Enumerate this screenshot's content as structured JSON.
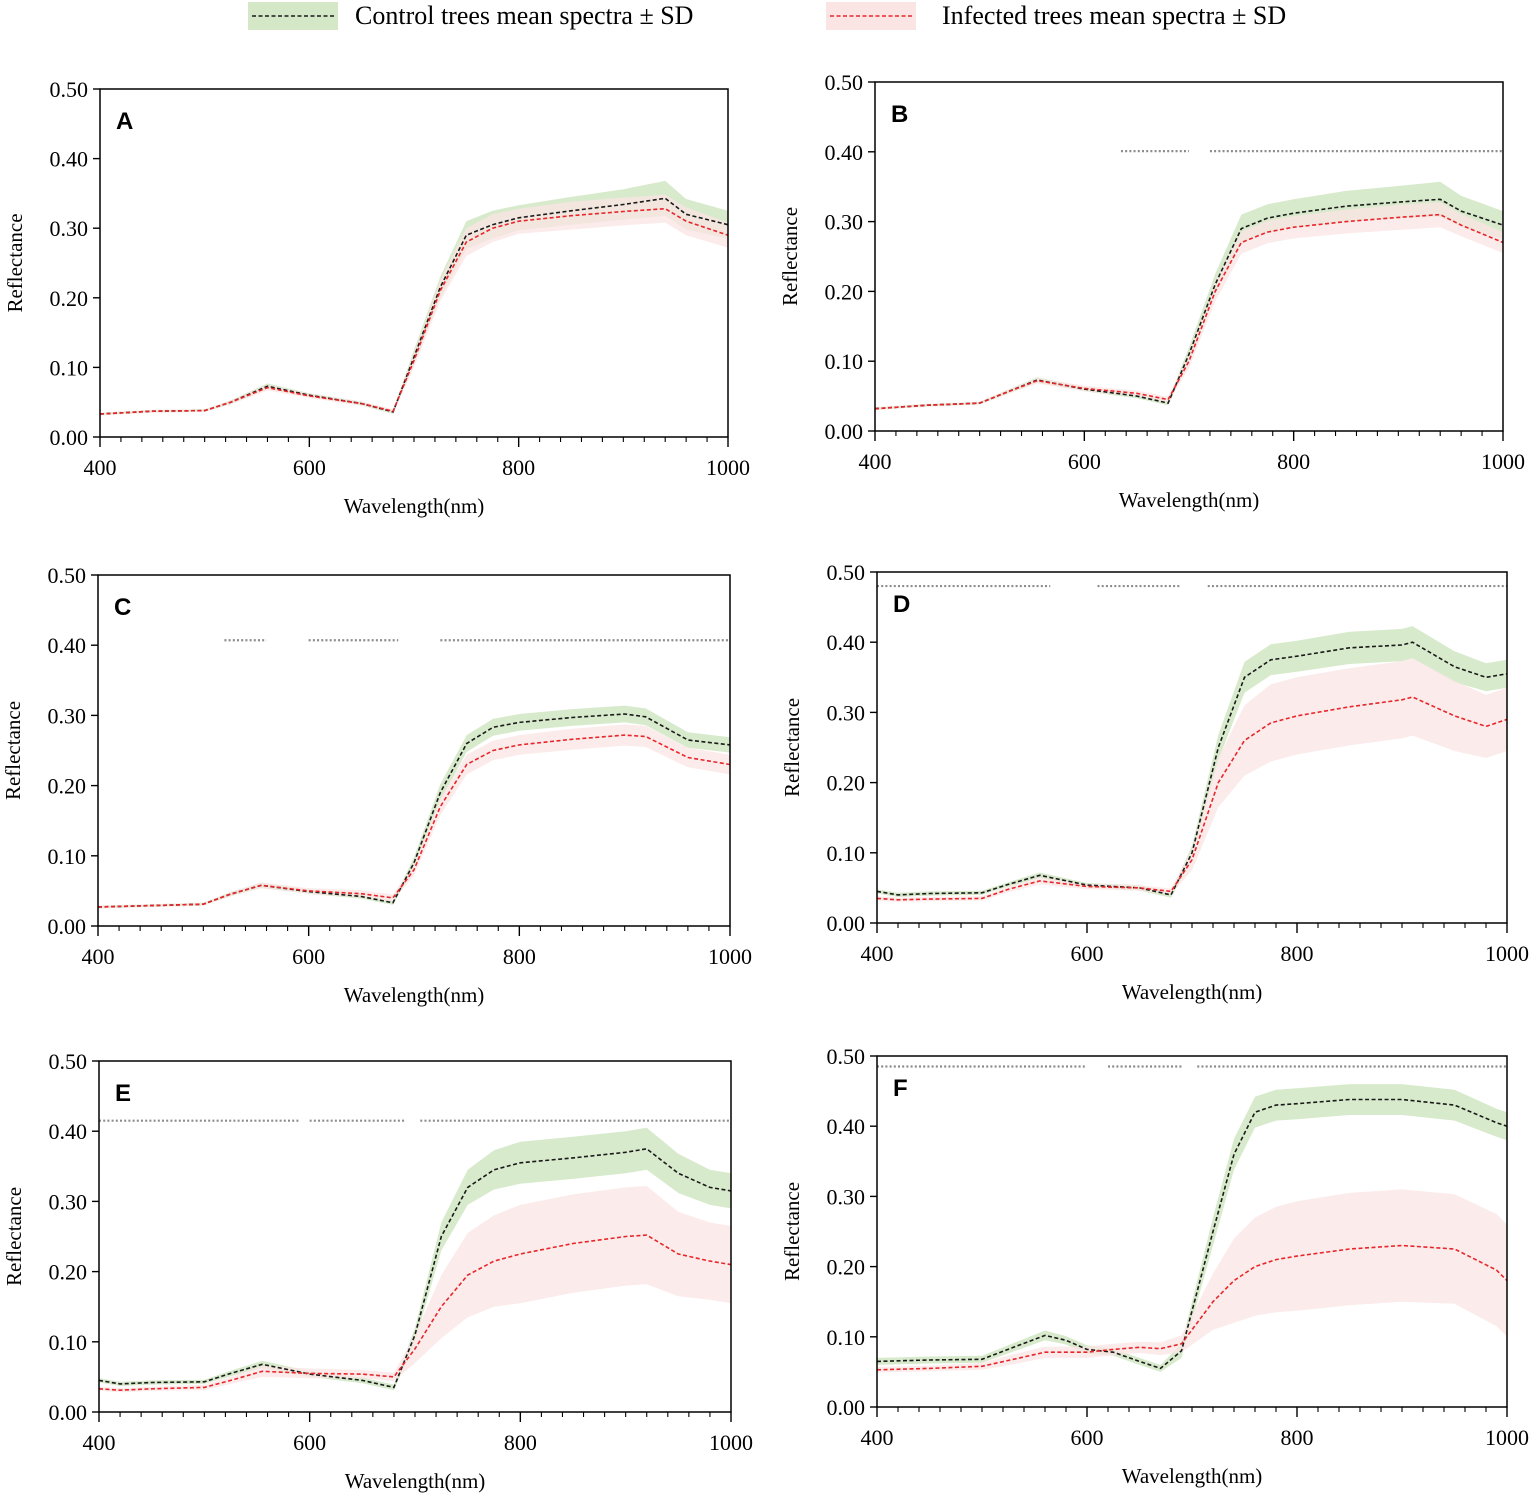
{
  "legend": {
    "control_label": "Control trees mean spectra ± SD",
    "infected_label": "Infected trees mean spectra ± SD"
  },
  "colors": {
    "control_line": "#1a1a1a",
    "control_band": "#d4e8c7",
    "infected_line": "#e8262a",
    "infected_band": "#fbe4e4",
    "axis": "#000000",
    "significance": "#8c8c8c"
  },
  "chart_data": [
    {
      "type": "line",
      "panel": "A",
      "xlabel": "Wavelength(nm)",
      "ylabel": "Reflectance",
      "xlim": [
        400,
        1000
      ],
      "ylim": [
        0,
        0.5
      ],
      "xticks": [
        "400",
        "600",
        "800",
        "1000"
      ],
      "yticks": [
        "0.00",
        "0.10",
        "0.20",
        "0.30",
        "0.40",
        "0.50"
      ],
      "x": [
        400,
        450,
        500,
        525,
        560,
        600,
        650,
        680,
        700,
        725,
        750,
        775,
        800,
        850,
        900,
        940,
        960,
        1000
      ],
      "series": [
        {
          "name": "Control trees mean spectra ± SD",
          "values": [
            0.033,
            0.037,
            0.038,
            0.05,
            0.073,
            0.06,
            0.048,
            0.036,
            0.115,
            0.215,
            0.29,
            0.305,
            0.315,
            0.325,
            0.334,
            0.343,
            0.32,
            0.305
          ],
          "sd": [
            0.002,
            0.002,
            0.002,
            0.003,
            0.004,
            0.003,
            0.003,
            0.003,
            0.01,
            0.015,
            0.02,
            0.02,
            0.018,
            0.02,
            0.022,
            0.025,
            0.022,
            0.02
          ]
        },
        {
          "name": "Infected trees mean spectra ± SD",
          "values": [
            0.033,
            0.037,
            0.038,
            0.05,
            0.071,
            0.059,
            0.048,
            0.037,
            0.11,
            0.21,
            0.28,
            0.3,
            0.31,
            0.318,
            0.324,
            0.328,
            0.31,
            0.29
          ],
          "sd": [
            0.002,
            0.002,
            0.002,
            0.003,
            0.004,
            0.003,
            0.003,
            0.003,
            0.01,
            0.015,
            0.02,
            0.02,
            0.018,
            0.02,
            0.02,
            0.02,
            0.02,
            0.018
          ]
        }
      ],
      "significance": {
        "y": null,
        "ranges": []
      }
    },
    {
      "type": "line",
      "panel": "B",
      "xlabel": "Wavelength(nm)",
      "ylabel": "Reflectance",
      "xlim": [
        400,
        1000
      ],
      "ylim": [
        0,
        0.5
      ],
      "xticks": [
        "400",
        "600",
        "800",
        "1000"
      ],
      "yticks": [
        "0.00",
        "0.10",
        "0.20",
        "0.30",
        "0.40",
        "0.50"
      ],
      "x": [
        400,
        450,
        500,
        525,
        555,
        600,
        650,
        680,
        700,
        725,
        750,
        775,
        800,
        850,
        900,
        940,
        960,
        1000
      ],
      "series": [
        {
          "name": "Control trees mean spectra ± SD",
          "values": [
            0.032,
            0.037,
            0.04,
            0.055,
            0.073,
            0.06,
            0.05,
            0.04,
            0.11,
            0.21,
            0.29,
            0.305,
            0.312,
            0.322,
            0.328,
            0.332,
            0.315,
            0.295
          ],
          "sd": [
            0.002,
            0.002,
            0.002,
            0.003,
            0.004,
            0.003,
            0.003,
            0.003,
            0.01,
            0.015,
            0.02,
            0.02,
            0.02,
            0.022,
            0.023,
            0.025,
            0.022,
            0.02
          ]
        },
        {
          "name": "Infected trees mean spectra ± SD",
          "values": [
            0.032,
            0.037,
            0.04,
            0.055,
            0.072,
            0.061,
            0.054,
            0.045,
            0.1,
            0.2,
            0.27,
            0.285,
            0.292,
            0.3,
            0.306,
            0.31,
            0.295,
            0.27
          ],
          "sd": [
            0.002,
            0.002,
            0.002,
            0.003,
            0.004,
            0.004,
            0.004,
            0.004,
            0.01,
            0.014,
            0.016,
            0.016,
            0.016,
            0.017,
            0.018,
            0.018,
            0.016,
            0.015
          ]
        }
      ],
      "significance": {
        "y": 0.401,
        "ranges": [
          [
            635,
            700
          ],
          [
            720,
            1000
          ]
        ]
      }
    },
    {
      "type": "line",
      "panel": "C",
      "xlabel": "Wavelength(nm)",
      "ylabel": "Reflectance",
      "xlim": [
        400,
        1000
      ],
      "ylim": [
        0,
        0.5
      ],
      "xticks": [
        "400",
        "600",
        "800",
        "1000"
      ],
      "yticks": [
        "0.00",
        "0.10",
        "0.20",
        "0.30",
        "0.40",
        "0.50"
      ],
      "x": [
        400,
        450,
        500,
        525,
        555,
        600,
        650,
        680,
        700,
        725,
        750,
        775,
        800,
        850,
        900,
        920,
        960,
        1000
      ],
      "series": [
        {
          "name": "Control trees mean spectra ± SD",
          "values": [
            0.027,
            0.029,
            0.031,
            0.045,
            0.058,
            0.049,
            0.042,
            0.033,
            0.09,
            0.19,
            0.26,
            0.283,
            0.29,
            0.297,
            0.302,
            0.298,
            0.265,
            0.258
          ],
          "sd": [
            0.002,
            0.002,
            0.002,
            0.003,
            0.004,
            0.003,
            0.003,
            0.003,
            0.008,
            0.012,
            0.012,
            0.012,
            0.012,
            0.012,
            0.012,
            0.012,
            0.011,
            0.011
          ]
        },
        {
          "name": "Infected trees mean spectra ± SD",
          "values": [
            0.027,
            0.029,
            0.031,
            0.045,
            0.058,
            0.05,
            0.046,
            0.04,
            0.08,
            0.17,
            0.23,
            0.25,
            0.258,
            0.266,
            0.272,
            0.27,
            0.24,
            0.23
          ],
          "sd": [
            0.002,
            0.002,
            0.002,
            0.003,
            0.004,
            0.004,
            0.005,
            0.005,
            0.008,
            0.012,
            0.014,
            0.014,
            0.014,
            0.015,
            0.015,
            0.015,
            0.014,
            0.014
          ]
        }
      ],
      "significance": {
        "y": 0.407,
        "ranges": [
          [
            520,
            560
          ],
          [
            600,
            685
          ],
          [
            725,
            1000
          ]
        ]
      }
    },
    {
      "type": "line",
      "panel": "D",
      "xlabel": "Wavelength(nm)",
      "ylabel": "Reflectance",
      "xlim": [
        400,
        1000
      ],
      "ylim": [
        0,
        0.5
      ],
      "xticks": [
        "400",
        "600",
        "800",
        "1000"
      ],
      "yticks": [
        "0.00",
        "0.10",
        "0.20",
        "0.30",
        "0.40",
        "0.50"
      ],
      "x": [
        400,
        420,
        450,
        500,
        525,
        555,
        600,
        650,
        680,
        700,
        725,
        750,
        775,
        800,
        850,
        900,
        910,
        950,
        980,
        1000
      ],
      "series": [
        {
          "name": "Control trees mean spectra ± SD",
          "values": [
            0.045,
            0.04,
            0.042,
            0.043,
            0.055,
            0.068,
            0.054,
            0.05,
            0.04,
            0.1,
            0.25,
            0.35,
            0.375,
            0.38,
            0.392,
            0.396,
            0.4,
            0.365,
            0.35,
            0.355
          ],
          "sd": [
            0.003,
            0.003,
            0.003,
            0.003,
            0.003,
            0.004,
            0.003,
            0.004,
            0.004,
            0.01,
            0.018,
            0.022,
            0.022,
            0.022,
            0.023,
            0.023,
            0.023,
            0.022,
            0.02,
            0.02
          ]
        },
        {
          "name": "Infected trees mean spectra ± SD",
          "values": [
            0.035,
            0.033,
            0.034,
            0.035,
            0.048,
            0.06,
            0.052,
            0.05,
            0.045,
            0.09,
            0.2,
            0.26,
            0.285,
            0.295,
            0.308,
            0.318,
            0.322,
            0.295,
            0.28,
            0.29
          ],
          "sd": [
            0.003,
            0.003,
            0.003,
            0.003,
            0.004,
            0.005,
            0.004,
            0.004,
            0.004,
            0.015,
            0.035,
            0.05,
            0.055,
            0.055,
            0.055,
            0.055,
            0.055,
            0.05,
            0.045,
            0.045
          ]
        }
      ],
      "significance": {
        "y": 0.48,
        "ranges": [
          [
            400,
            565
          ],
          [
            610,
            690
          ],
          [
            715,
            1000
          ]
        ]
      }
    },
    {
      "type": "line",
      "panel": "E",
      "xlabel": "Wavelength(nm)",
      "ylabel": "Reflectance",
      "xlim": [
        400,
        1000
      ],
      "ylim": [
        0,
        0.5
      ],
      "xticks": [
        "400",
        "600",
        "800",
        "1000"
      ],
      "yticks": [
        "0.00",
        "0.10",
        "0.20",
        "0.30",
        "0.40",
        "0.50"
      ],
      "x": [
        400,
        420,
        450,
        500,
        525,
        555,
        600,
        650,
        680,
        700,
        725,
        750,
        775,
        800,
        850,
        900,
        920,
        950,
        980,
        1000
      ],
      "series": [
        {
          "name": "Control trees mean spectra ± SD",
          "values": [
            0.045,
            0.04,
            0.042,
            0.043,
            0.055,
            0.068,
            0.054,
            0.045,
            0.035,
            0.11,
            0.25,
            0.32,
            0.345,
            0.355,
            0.362,
            0.37,
            0.375,
            0.34,
            0.32,
            0.315
          ],
          "sd": [
            0.003,
            0.003,
            0.003,
            0.003,
            0.004,
            0.005,
            0.004,
            0.004,
            0.004,
            0.01,
            0.02,
            0.025,
            0.028,
            0.03,
            0.03,
            0.03,
            0.03,
            0.028,
            0.025,
            0.025
          ]
        },
        {
          "name": "Infected trees mean spectra ± SD",
          "values": [
            0.033,
            0.031,
            0.033,
            0.035,
            0.045,
            0.058,
            0.055,
            0.054,
            0.05,
            0.09,
            0.15,
            0.195,
            0.215,
            0.225,
            0.24,
            0.25,
            0.252,
            0.225,
            0.215,
            0.21
          ],
          "sd": [
            0.003,
            0.003,
            0.003,
            0.004,
            0.005,
            0.008,
            0.007,
            0.006,
            0.006,
            0.02,
            0.045,
            0.06,
            0.065,
            0.07,
            0.07,
            0.07,
            0.07,
            0.06,
            0.055,
            0.055
          ]
        }
      ],
      "significance": {
        "y": 0.415,
        "ranges": [
          [
            400,
            590
          ],
          [
            600,
            690
          ],
          [
            705,
            1000
          ]
        ]
      }
    },
    {
      "type": "line",
      "panel": "F",
      "xlabel": "Wavelength(nm)",
      "ylabel": "Reflectance",
      "xlim": [
        400,
        1000
      ],
      "ylim": [
        0,
        0.5
      ],
      "xticks": [
        "400",
        "600",
        "800",
        "1000"
      ],
      "yticks": [
        "0.00",
        "0.10",
        "0.20",
        "0.30",
        "0.40",
        "0.50"
      ],
      "x": [
        400,
        450,
        500,
        530,
        560,
        580,
        600,
        625,
        650,
        670,
        690,
        720,
        740,
        760,
        780,
        800,
        850,
        900,
        950,
        990,
        1000
      ],
      "series": [
        {
          "name": "Control trees mean spectra ± SD",
          "values": [
            0.065,
            0.067,
            0.068,
            0.085,
            0.102,
            0.095,
            0.082,
            0.078,
            0.065,
            0.055,
            0.08,
            0.25,
            0.36,
            0.42,
            0.43,
            0.432,
            0.438,
            0.438,
            0.43,
            0.405,
            0.4
          ],
          "sd": [
            0.005,
            0.005,
            0.005,
            0.006,
            0.007,
            0.006,
            0.006,
            0.005,
            0.005,
            0.005,
            0.01,
            0.02,
            0.022,
            0.022,
            0.022,
            0.022,
            0.022,
            0.022,
            0.022,
            0.02,
            0.02
          ]
        },
        {
          "name": "Infected trees mean spectra ± SD",
          "values": [
            0.053,
            0.055,
            0.058,
            0.068,
            0.078,
            0.078,
            0.078,
            0.082,
            0.085,
            0.083,
            0.09,
            0.15,
            0.18,
            0.2,
            0.21,
            0.215,
            0.225,
            0.23,
            0.225,
            0.195,
            0.18
          ],
          "sd": [
            0.004,
            0.004,
            0.005,
            0.007,
            0.008,
            0.008,
            0.008,
            0.008,
            0.008,
            0.009,
            0.012,
            0.04,
            0.06,
            0.07,
            0.075,
            0.078,
            0.08,
            0.08,
            0.078,
            0.08,
            0.08
          ]
        }
      ],
      "significance": {
        "y": 0.485,
        "ranges": [
          [
            400,
            600
          ],
          [
            620,
            690
          ],
          [
            705,
            1000
          ]
        ]
      }
    }
  ]
}
